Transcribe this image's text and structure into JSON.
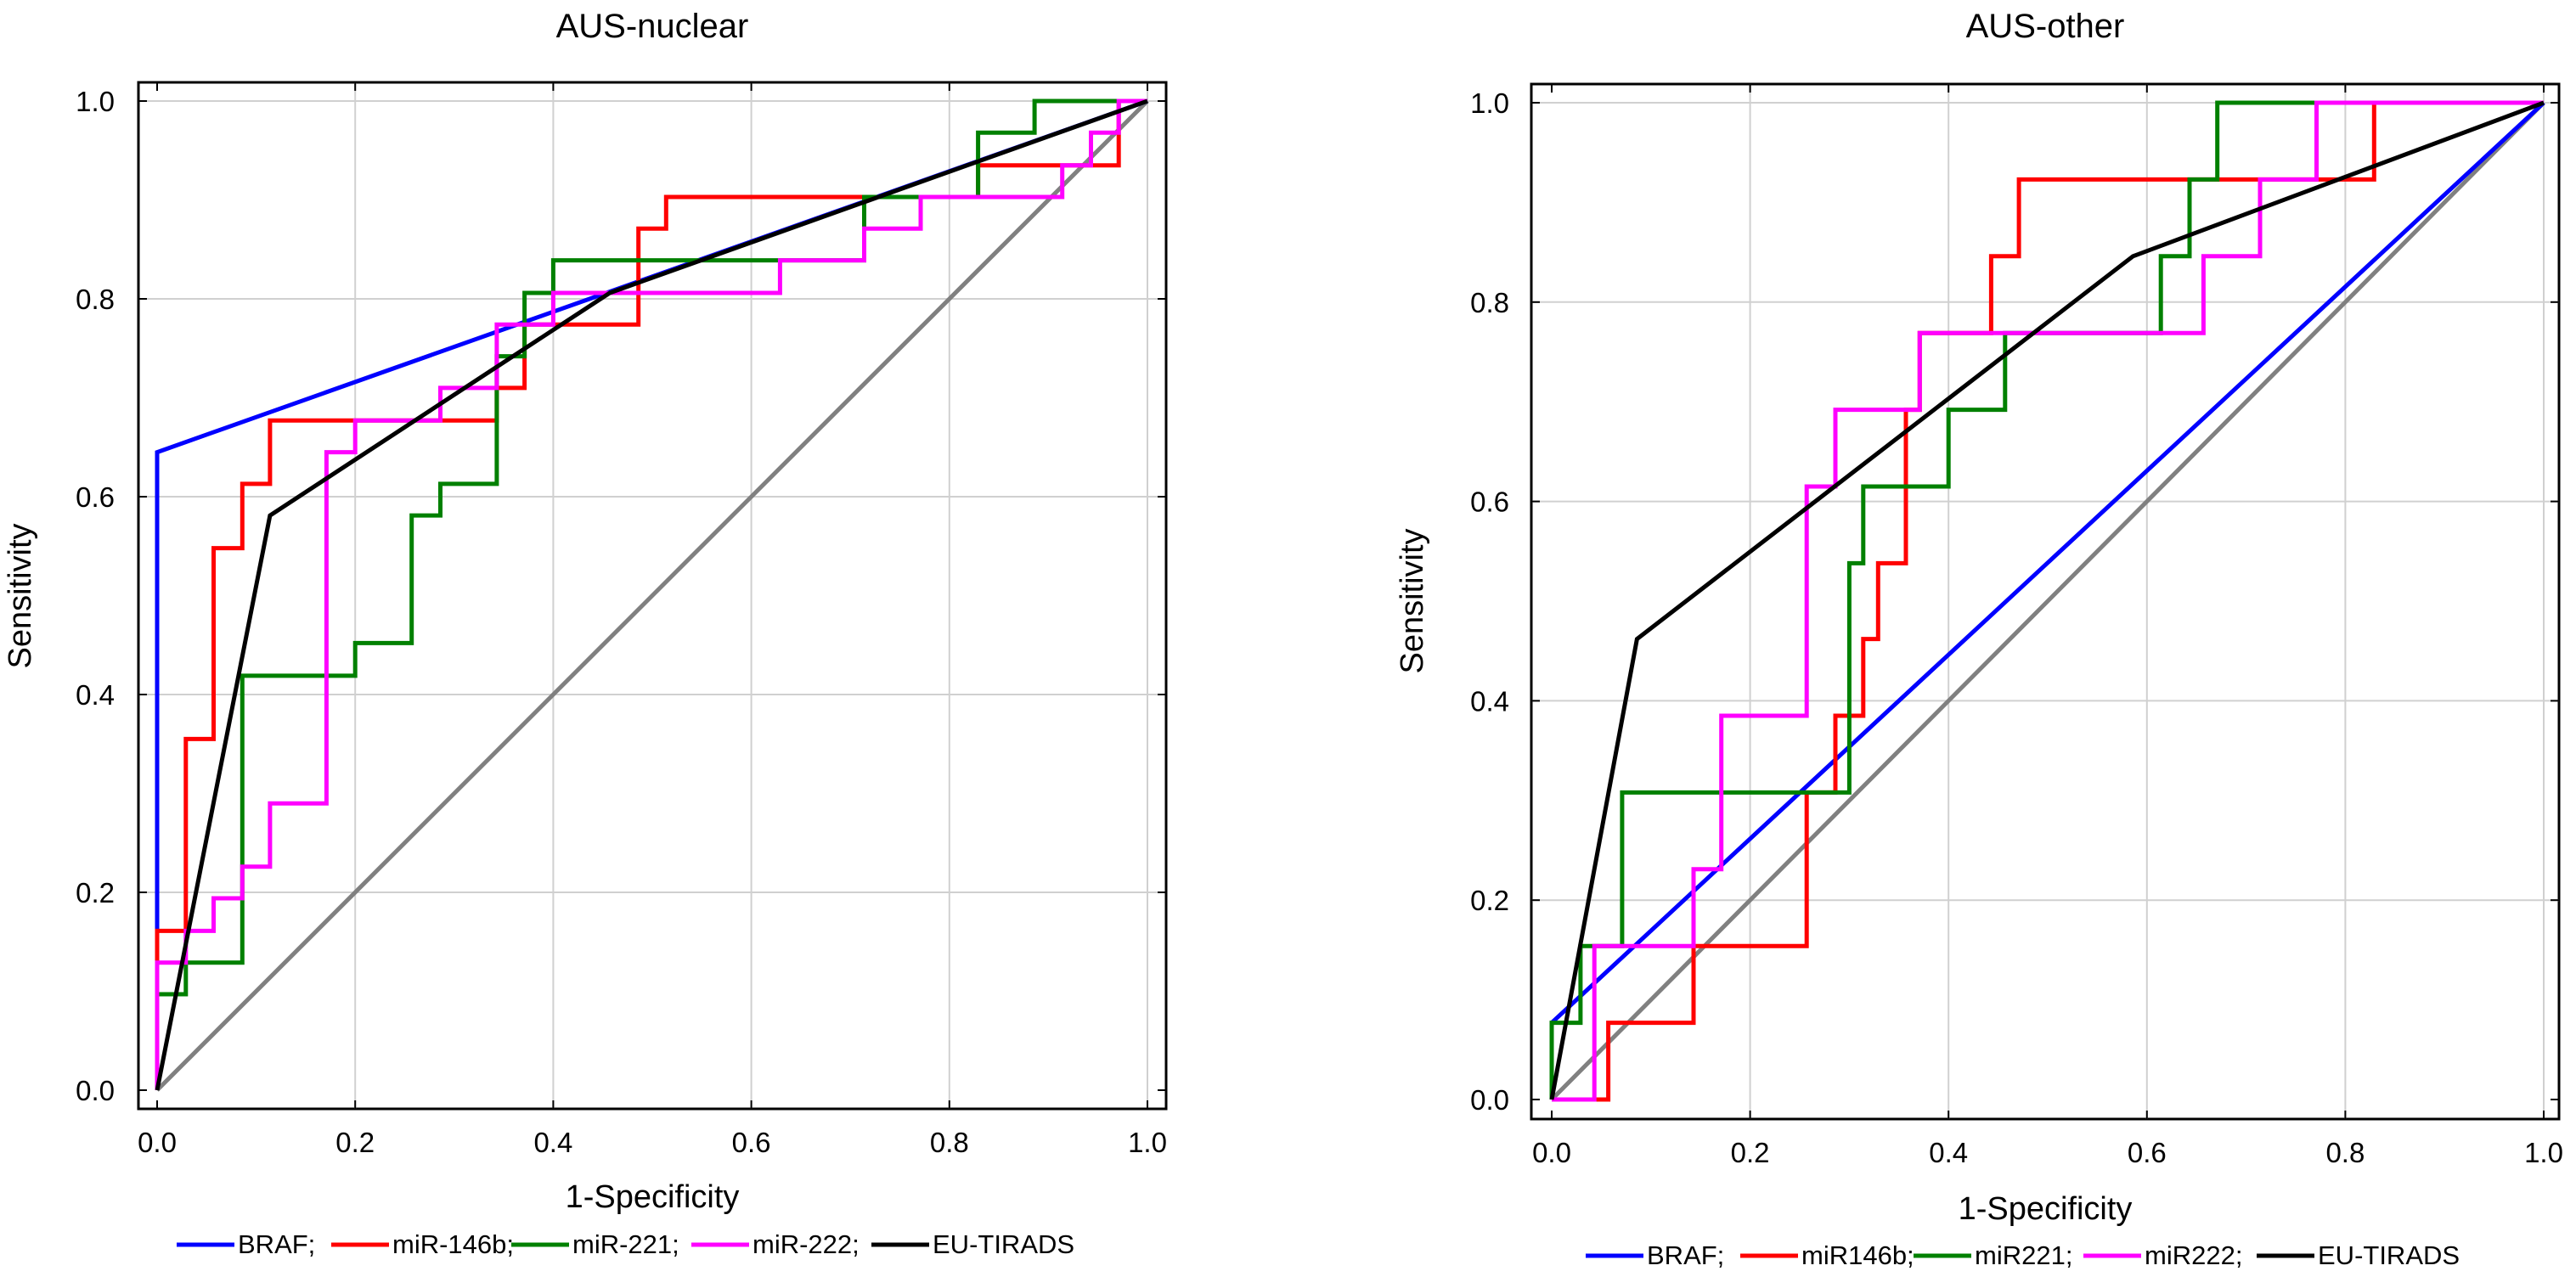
{
  "chart_data": [
    {
      "type": "line",
      "title": "AUS-nuclear",
      "xlabel": "1-Specificity",
      "ylabel": "Sensitivity",
      "xlim": [
        0,
        1
      ],
      "ylim": [
        0,
        1
      ],
      "grid": true,
      "x_ticks": [
        "0.0",
        "0.2",
        "0.4",
        "0.6",
        "0.8",
        "1.0"
      ],
      "y_ticks": [
        "0.0",
        "0.2",
        "0.4",
        "0.6",
        "0.8",
        "1.0"
      ],
      "reference_line": {
        "color": "#808080",
        "points": [
          [
            0,
            0
          ],
          [
            1,
            1
          ]
        ]
      },
      "series": [
        {
          "name": "BRAF",
          "legend": "BRAF;",
          "color": "#0000ff",
          "points": [
            [
              0,
              0
            ],
            [
              0,
              0.645
            ],
            [
              1,
              1
            ]
          ]
        },
        {
          "name": "miR-146b",
          "legend": "miR-146b;",
          "color": "#ff0000",
          "points": [
            [
              0,
              0
            ],
            [
              0,
              0.161
            ],
            [
              0.029,
              0.161
            ],
            [
              0.029,
              0.355
            ],
            [
              0.057,
              0.355
            ],
            [
              0.057,
              0.548
            ],
            [
              0.086,
              0.548
            ],
            [
              0.086,
              0.613
            ],
            [
              0.114,
              0.613
            ],
            [
              0.114,
              0.677
            ],
            [
              0.343,
              0.677
            ],
            [
              0.343,
              0.71
            ],
            [
              0.371,
              0.71
            ],
            [
              0.371,
              0.774
            ],
            [
              0.486,
              0.774
            ],
            [
              0.486,
              0.871
            ],
            [
              0.514,
              0.871
            ],
            [
              0.514,
              0.903
            ],
            [
              0.829,
              0.903
            ],
            [
              0.829,
              0.935
            ],
            [
              0.971,
              0.935
            ],
            [
              0.971,
              1
            ],
            [
              1,
              1
            ]
          ]
        },
        {
          "name": "miR-221",
          "legend": "miR-221;",
          "color": "#008000",
          "points": [
            [
              0,
              0
            ],
            [
              0,
              0.097
            ],
            [
              0.029,
              0.097
            ],
            [
              0.029,
              0.129
            ],
            [
              0.086,
              0.129
            ],
            [
              0.086,
              0.419
            ],
            [
              0.2,
              0.419
            ],
            [
              0.2,
              0.452
            ],
            [
              0.257,
              0.452
            ],
            [
              0.257,
              0.581
            ],
            [
              0.286,
              0.581
            ],
            [
              0.286,
              0.613
            ],
            [
              0.343,
              0.613
            ],
            [
              0.343,
              0.742
            ],
            [
              0.371,
              0.742
            ],
            [
              0.371,
              0.806
            ],
            [
              0.4,
              0.806
            ],
            [
              0.4,
              0.839
            ],
            [
              0.714,
              0.839
            ],
            [
              0.714,
              0.903
            ],
            [
              0.829,
              0.903
            ],
            [
              0.829,
              0.968
            ],
            [
              0.886,
              0.968
            ],
            [
              0.886,
              1
            ],
            [
              1,
              1
            ]
          ]
        },
        {
          "name": "miR-222",
          "legend": "miR-222;",
          "color": "#ff00ff",
          "points": [
            [
              0,
              0
            ],
            [
              0,
              0.129
            ],
            [
              0.029,
              0.129
            ],
            [
              0.029,
              0.161
            ],
            [
              0.057,
              0.161
            ],
            [
              0.057,
              0.194
            ],
            [
              0.086,
              0.194
            ],
            [
              0.086,
              0.226
            ],
            [
              0.114,
              0.226
            ],
            [
              0.114,
              0.29
            ],
            [
              0.171,
              0.29
            ],
            [
              0.171,
              0.645
            ],
            [
              0.2,
              0.645
            ],
            [
              0.2,
              0.677
            ],
            [
              0.286,
              0.677
            ],
            [
              0.286,
              0.71
            ],
            [
              0.343,
              0.71
            ],
            [
              0.343,
              0.774
            ],
            [
              0.4,
              0.774
            ],
            [
              0.4,
              0.806
            ],
            [
              0.629,
              0.806
            ],
            [
              0.629,
              0.839
            ],
            [
              0.714,
              0.839
            ],
            [
              0.714,
              0.871
            ],
            [
              0.771,
              0.871
            ],
            [
              0.771,
              0.903
            ],
            [
              0.914,
              0.903
            ],
            [
              0.914,
              0.935
            ],
            [
              0.943,
              0.935
            ],
            [
              0.943,
              0.968
            ],
            [
              0.971,
              0.968
            ],
            [
              0.971,
              1
            ],
            [
              1,
              1
            ]
          ]
        },
        {
          "name": "EU-TIRADS",
          "legend": "EU-TIRADS",
          "color": "#000000",
          "points": [
            [
              0,
              0
            ],
            [
              0.114,
              0.581
            ],
            [
              0.457,
              0.806
            ],
            [
              1,
              1
            ]
          ]
        }
      ]
    },
    {
      "type": "line",
      "title": "AUS-other",
      "xlabel": "1-Specificity",
      "ylabel": "Sensitivity",
      "xlim": [
        0,
        1
      ],
      "ylim": [
        0,
        1
      ],
      "grid": true,
      "x_ticks": [
        "0.0",
        "0.2",
        "0.4",
        "0.6",
        "0.8",
        "1.0"
      ],
      "y_ticks": [
        "0.0",
        "0.2",
        "0.4",
        "0.6",
        "0.8",
        "1.0"
      ],
      "reference_line": {
        "color": "#808080",
        "points": [
          [
            0,
            0
          ],
          [
            1,
            1
          ]
        ]
      },
      "series": [
        {
          "name": "BRAF",
          "legend": "BRAF;",
          "color": "#0000ff",
          "points": [
            [
              0,
              0
            ],
            [
              0,
              0.077
            ],
            [
              1,
              1
            ]
          ]
        },
        {
          "name": "miR146b",
          "legend": "miR146b;",
          "color": "#ff0000",
          "points": [
            [
              0,
              0
            ],
            [
              0.057,
              0
            ],
            [
              0.057,
              0.077
            ],
            [
              0.143,
              0.077
            ],
            [
              0.143,
              0.154
            ],
            [
              0.257,
              0.154
            ],
            [
              0.257,
              0.308
            ],
            [
              0.286,
              0.308
            ],
            [
              0.286,
              0.385
            ],
            [
              0.314,
              0.385
            ],
            [
              0.314,
              0.462
            ],
            [
              0.329,
              0.462
            ],
            [
              0.329,
              0.538
            ],
            [
              0.357,
              0.538
            ],
            [
              0.357,
              0.692
            ],
            [
              0.371,
              0.692
            ],
            [
              0.371,
              0.769
            ],
            [
              0.443,
              0.769
            ],
            [
              0.443,
              0.846
            ],
            [
              0.471,
              0.846
            ],
            [
              0.471,
              0.923
            ],
            [
              0.829,
              0.923
            ],
            [
              0.829,
              1
            ],
            [
              1,
              1
            ]
          ]
        },
        {
          "name": "miR221",
          "legend": "miR221;",
          "color": "#008000",
          "points": [
            [
              0,
              0
            ],
            [
              0,
              0.077
            ],
            [
              0.029,
              0.077
            ],
            [
              0.029,
              0.154
            ],
            [
              0.071,
              0.154
            ],
            [
              0.071,
              0.308
            ],
            [
              0.3,
              0.308
            ],
            [
              0.3,
              0.538
            ],
            [
              0.314,
              0.538
            ],
            [
              0.314,
              0.615
            ],
            [
              0.4,
              0.615
            ],
            [
              0.4,
              0.692
            ],
            [
              0.457,
              0.692
            ],
            [
              0.457,
              0.769
            ],
            [
              0.614,
              0.769
            ],
            [
              0.614,
              0.846
            ],
            [
              0.643,
              0.846
            ],
            [
              0.643,
              0.923
            ],
            [
              0.671,
              0.923
            ],
            [
              0.671,
              1
            ],
            [
              1,
              1
            ]
          ]
        },
        {
          "name": "miR222",
          "legend": "miR222;",
          "color": "#ff00ff",
          "points": [
            [
              0,
              0
            ],
            [
              0.043,
              0
            ],
            [
              0.043,
              0.154
            ],
            [
              0.143,
              0.154
            ],
            [
              0.143,
              0.231
            ],
            [
              0.171,
              0.231
            ],
            [
              0.171,
              0.385
            ],
            [
              0.257,
              0.385
            ],
            [
              0.257,
              0.615
            ],
            [
              0.286,
              0.615
            ],
            [
              0.286,
              0.692
            ],
            [
              0.371,
              0.692
            ],
            [
              0.371,
              0.769
            ],
            [
              0.657,
              0.769
            ],
            [
              0.657,
              0.846
            ],
            [
              0.714,
              0.846
            ],
            [
              0.714,
              0.923
            ],
            [
              0.771,
              0.923
            ],
            [
              0.771,
              1
            ],
            [
              1,
              1
            ]
          ]
        },
        {
          "name": "EU-TIRADS",
          "legend": "EU-TIRADS",
          "color": "#000000",
          "points": [
            [
              0,
              0
            ],
            [
              0.086,
              0.462
            ],
            [
              0.586,
              0.846
            ],
            [
              1,
              1
            ]
          ]
        }
      ]
    }
  ]
}
